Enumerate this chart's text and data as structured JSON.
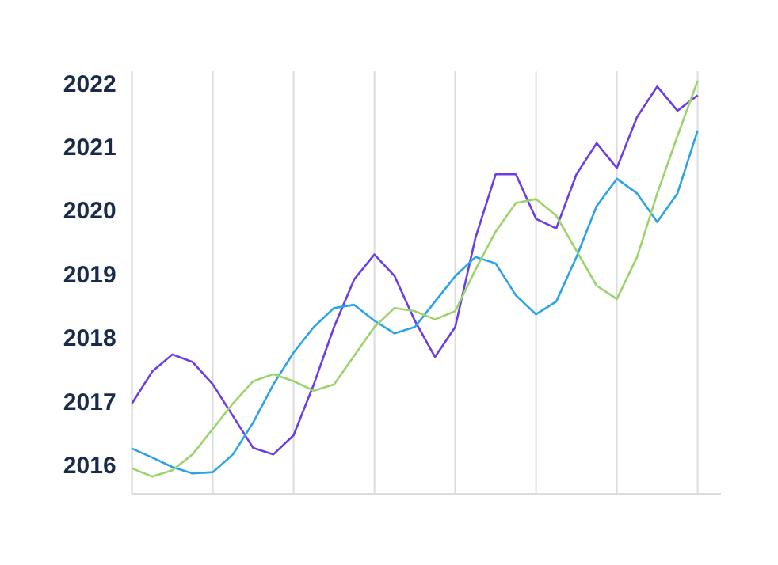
{
  "chart_data": {
    "type": "line",
    "ylim": [
      2015.58,
      2022.22
    ],
    "categories": [
      null,
      null,
      null,
      null,
      null,
      null,
      null,
      null,
      null,
      null,
      null,
      null,
      null,
      null,
      null,
      null,
      null,
      null,
      null,
      null,
      null,
      null,
      null,
      null,
      null,
      null,
      null,
      null,
      null
    ],
    "yticks": [
      2016,
      2017,
      2018,
      2019,
      2020,
      2021,
      2022
    ],
    "tick_labels": "y",
    "grid": "x",
    "line_style": "solid",
    "series": [
      {
        "color": "#6a3de8",
        "values": [
          2017.0,
          2017.5,
          2017.77,
          2017.65,
          2017.3,
          2016.8,
          2016.3,
          2016.2,
          2016.5,
          2017.3,
          2018.2,
          2018.95,
          2019.34,
          2019.0,
          2018.3,
          2017.73,
          2018.2,
          2019.6,
          2020.6,
          2020.6,
          2019.9,
          2019.75,
          2020.6,
          2021.09,
          2020.7,
          2021.5,
          2021.98,
          2021.6,
          2021.84
        ]
      },
      {
        "color": "#2aa3e8",
        "values": [
          2016.29,
          2016.15,
          2016.0,
          2015.9,
          2015.92,
          2016.2,
          2016.7,
          2017.3,
          2017.8,
          2018.2,
          2018.5,
          2018.55,
          2018.3,
          2018.1,
          2018.2,
          2018.6,
          2019.0,
          2019.3,
          2019.2,
          2018.7,
          2018.4,
          2018.6,
          2019.3,
          2020.1,
          2020.53,
          2020.3,
          2019.85,
          2020.3,
          2021.29
        ]
      },
      {
        "color": "#9bd46a",
        "values": [
          2015.98,
          2015.85,
          2015.95,
          2016.2,
          2016.6,
          2017.0,
          2017.35,
          2017.46,
          2017.35,
          2017.2,
          2017.3,
          2017.75,
          2018.2,
          2018.5,
          2018.45,
          2018.32,
          2018.45,
          2019.1,
          2019.7,
          2020.15,
          2020.21,
          2019.95,
          2019.4,
          2018.85,
          2018.64,
          2019.3,
          2020.3,
          2021.2,
          2022.07
        ]
      }
    ]
  }
}
